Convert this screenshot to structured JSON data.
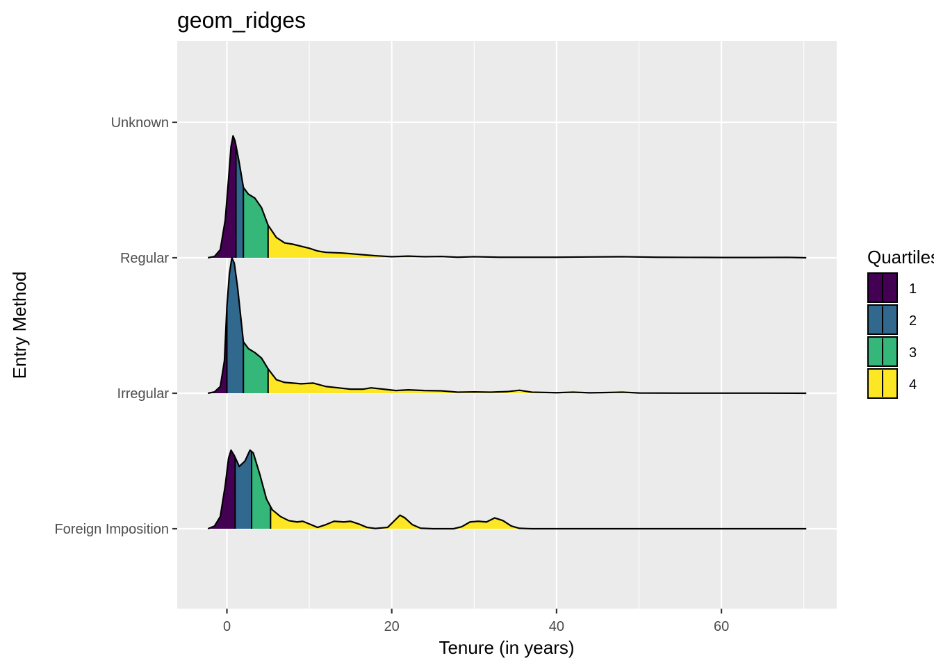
{
  "chart_data": {
    "type": "ridgeline",
    "title": "geom_ridges",
    "xlabel": "Tenure (in years)",
    "ylabel": "Entry Method",
    "xlim": [
      -5.9,
      74.0
    ],
    "x_ticks": [
      0,
      20,
      40,
      60
    ],
    "x_minor_ticks": [
      10,
      30,
      50,
      70
    ],
    "categories": [
      "Foreign Imposition",
      "Irregular",
      "Regular",
      "Unknown"
    ],
    "density_range": [
      -2.3,
      70.3
    ],
    "grid": true,
    "legend": {
      "title": "Quartiles",
      "placement": "right",
      "entries": [
        "1",
        "2",
        "3",
        "4"
      ]
    },
    "quartile_colors": [
      "#440154",
      "#31688e",
      "#35b779",
      "#fde725"
    ],
    "series": [
      {
        "name": "Regular",
        "quartile_cuts": [
          1.1,
          2.0,
          5.0
        ],
        "density": [
          [
            -2.3,
            0.0
          ],
          [
            -1.5,
            0.01
          ],
          [
            -0.8,
            0.06
          ],
          [
            -0.2,
            0.28
          ],
          [
            0.2,
            0.58
          ],
          [
            0.5,
            0.82
          ],
          [
            0.75,
            0.9
          ],
          [
            1.0,
            0.86
          ],
          [
            1.5,
            0.7
          ],
          [
            2.0,
            0.52
          ],
          [
            2.6,
            0.47
          ],
          [
            3.4,
            0.44
          ],
          [
            4.2,
            0.37
          ],
          [
            5.0,
            0.24
          ],
          [
            6.0,
            0.15
          ],
          [
            7.0,
            0.11
          ],
          [
            8.0,
            0.1
          ],
          [
            9.0,
            0.085
          ],
          [
            10.0,
            0.07
          ],
          [
            11.0,
            0.05
          ],
          [
            12.0,
            0.04
          ],
          [
            14.0,
            0.035
          ],
          [
            16.0,
            0.025
          ],
          [
            18.0,
            0.015
          ],
          [
            20.0,
            0.008
          ],
          [
            22.0,
            0.012
          ],
          [
            24.0,
            0.008
          ],
          [
            26.0,
            0.01
          ],
          [
            28.0,
            0.004
          ],
          [
            30.0,
            0.008
          ],
          [
            33.0,
            0.004
          ],
          [
            36.0,
            0.004
          ],
          [
            40.0,
            0.004
          ],
          [
            44.0,
            0.006
          ],
          [
            48.0,
            0.008
          ],
          [
            52.0,
            0.004
          ],
          [
            56.0,
            0.003
          ],
          [
            60.0,
            0.002
          ],
          [
            64.0,
            0.002
          ],
          [
            68.0,
            0.003
          ],
          [
            70.3,
            0.0
          ]
        ]
      },
      {
        "name": "Irregular",
        "quartile_cuts": [
          0.0,
          2.0,
          5.0
        ],
        "density": [
          [
            -2.3,
            0.0
          ],
          [
            -1.5,
            0.01
          ],
          [
            -0.8,
            0.05
          ],
          [
            -0.3,
            0.24
          ],
          [
            0.0,
            0.64
          ],
          [
            0.3,
            0.88
          ],
          [
            0.6,
            1.0
          ],
          [
            0.9,
            0.96
          ],
          [
            1.3,
            0.78
          ],
          [
            2.0,
            0.38
          ],
          [
            2.6,
            0.33
          ],
          [
            3.4,
            0.3
          ],
          [
            4.2,
            0.26
          ],
          [
            5.0,
            0.18
          ],
          [
            6.0,
            0.1
          ],
          [
            7.0,
            0.08
          ],
          [
            8.0,
            0.075
          ],
          [
            9.0,
            0.07
          ],
          [
            10.5,
            0.075
          ],
          [
            12.0,
            0.05
          ],
          [
            13.5,
            0.04
          ],
          [
            15.0,
            0.03
          ],
          [
            16.5,
            0.03
          ],
          [
            17.5,
            0.04
          ],
          [
            19.0,
            0.03
          ],
          [
            20.5,
            0.02
          ],
          [
            22.0,
            0.025
          ],
          [
            24.0,
            0.02
          ],
          [
            26.0,
            0.018
          ],
          [
            28.0,
            0.008
          ],
          [
            30.0,
            0.01
          ],
          [
            32.0,
            0.008
          ],
          [
            34.0,
            0.012
          ],
          [
            35.5,
            0.022
          ],
          [
            37.0,
            0.008
          ],
          [
            40.0,
            0.004
          ],
          [
            42.0,
            0.008
          ],
          [
            44.0,
            0.003
          ],
          [
            46.0,
            0.005
          ],
          [
            48.0,
            0.008
          ],
          [
            50.0,
            0.002
          ],
          [
            55.0,
            0.001
          ],
          [
            60.0,
            0.001
          ],
          [
            65.0,
            0.001
          ],
          [
            70.3,
            0.0
          ]
        ]
      },
      {
        "name": "Foreign Imposition",
        "quartile_cuts": [
          1.0,
          3.0,
          5.3
        ],
        "density": [
          [
            -2.3,
            0.0
          ],
          [
            -1.5,
            0.02
          ],
          [
            -0.8,
            0.09
          ],
          [
            -0.2,
            0.32
          ],
          [
            0.2,
            0.52
          ],
          [
            0.5,
            0.58
          ],
          [
            0.9,
            0.54
          ],
          [
            1.5,
            0.46
          ],
          [
            2.2,
            0.5
          ],
          [
            2.8,
            0.58
          ],
          [
            3.2,
            0.56
          ],
          [
            4.0,
            0.4
          ],
          [
            4.8,
            0.22
          ],
          [
            5.5,
            0.14
          ],
          [
            6.5,
            0.09
          ],
          [
            7.5,
            0.06
          ],
          [
            8.5,
            0.05
          ],
          [
            9.2,
            0.055
          ],
          [
            10.0,
            0.035
          ],
          [
            11.0,
            0.01
          ],
          [
            12.0,
            0.03
          ],
          [
            13.0,
            0.055
          ],
          [
            14.2,
            0.05
          ],
          [
            15.0,
            0.055
          ],
          [
            16.0,
            0.035
          ],
          [
            17.0,
            0.01
          ],
          [
            18.0,
            0.002
          ],
          [
            19.5,
            0.01
          ],
          [
            20.5,
            0.07
          ],
          [
            21.0,
            0.1
          ],
          [
            21.6,
            0.08
          ],
          [
            22.5,
            0.03
          ],
          [
            23.5,
            0.004
          ],
          [
            25.0,
            0.0
          ],
          [
            27.5,
            0.0
          ],
          [
            28.5,
            0.015
          ],
          [
            29.5,
            0.05
          ],
          [
            30.5,
            0.055
          ],
          [
            31.5,
            0.05
          ],
          [
            32.5,
            0.08
          ],
          [
            33.5,
            0.06
          ],
          [
            34.5,
            0.02
          ],
          [
            35.5,
            0.003
          ],
          [
            37.0,
            0.0
          ],
          [
            70.3,
            0.0
          ]
        ]
      }
    ]
  }
}
